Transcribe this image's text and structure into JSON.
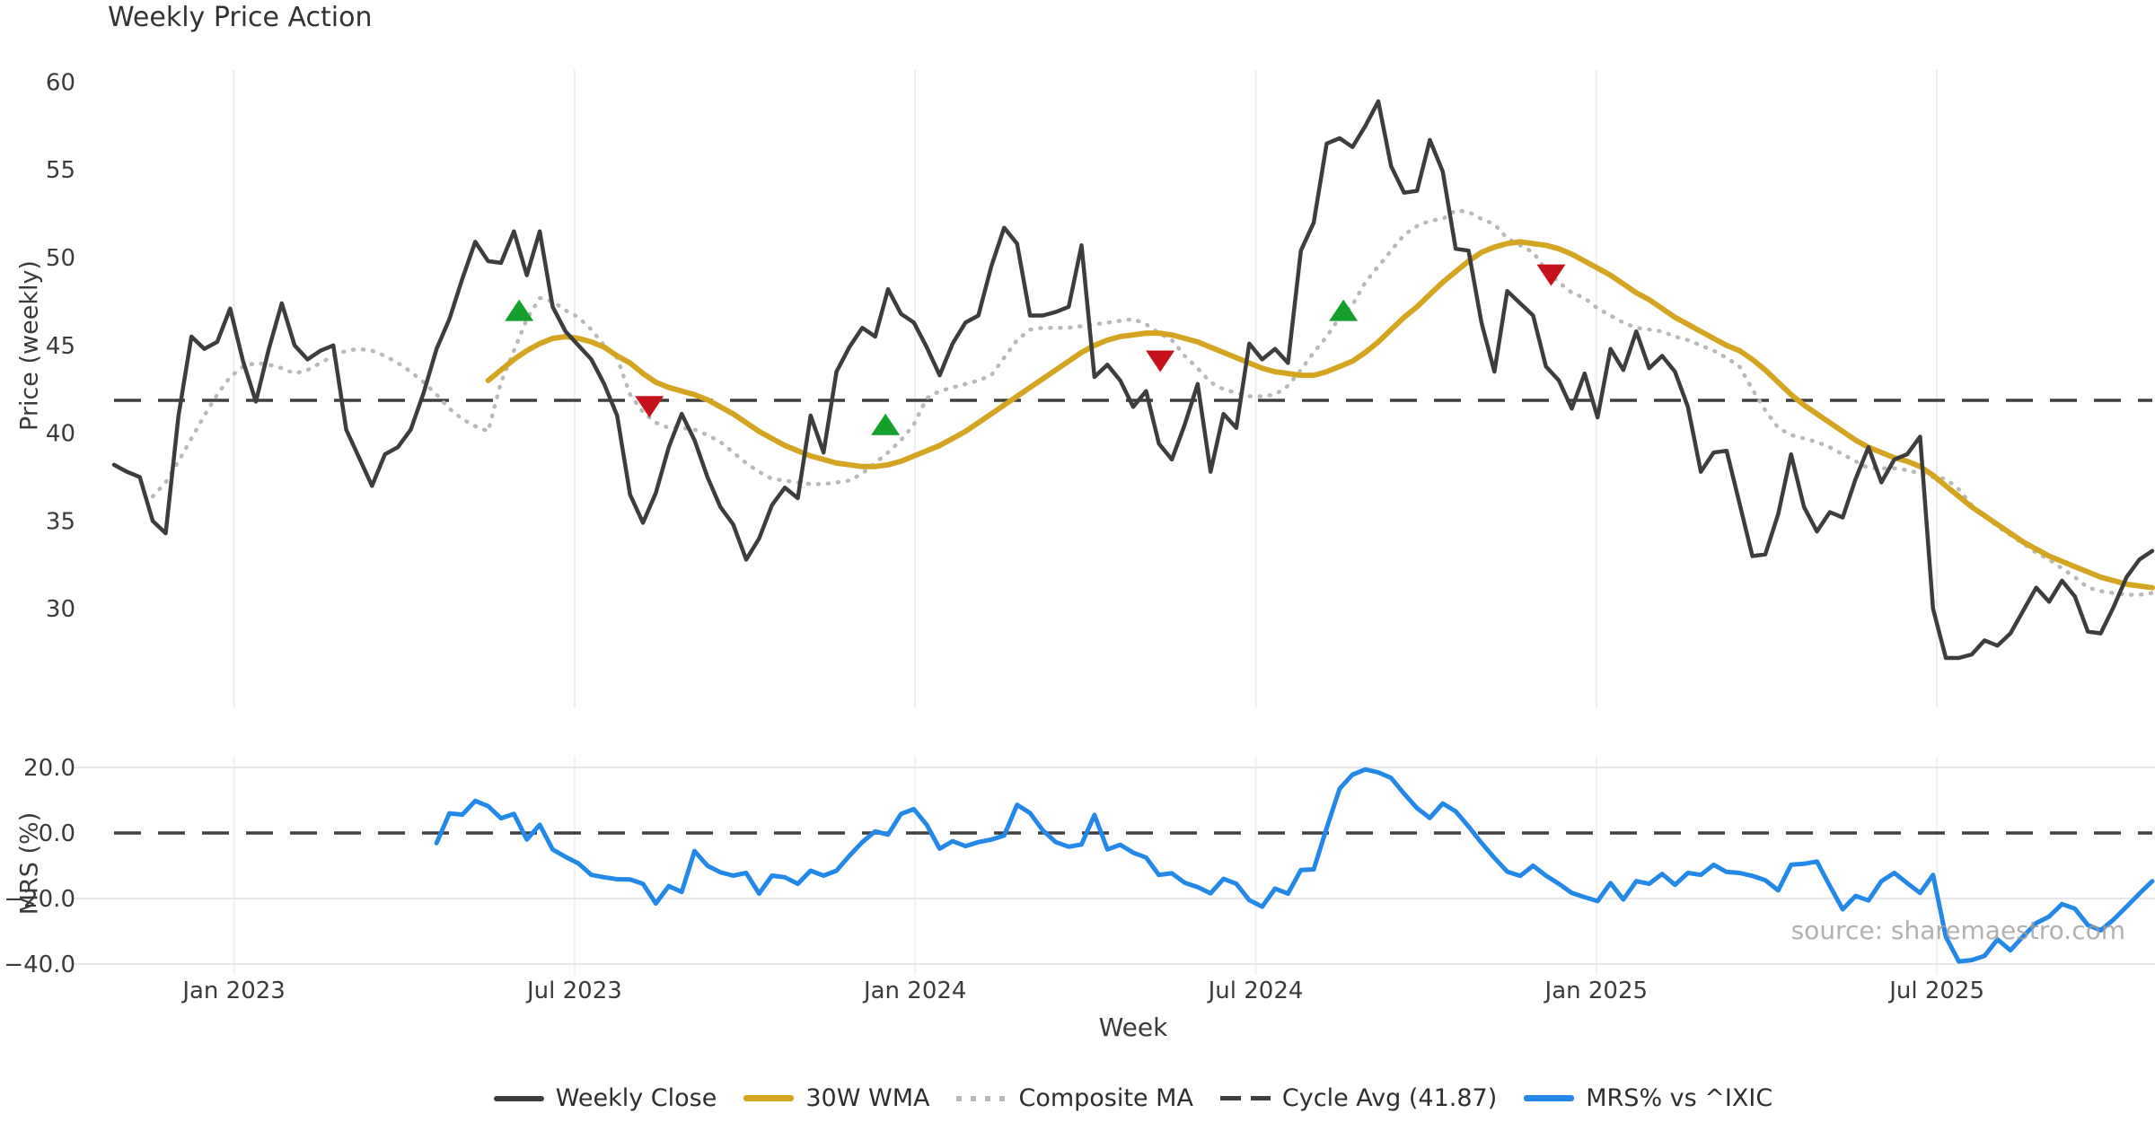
{
  "title": "Weekly Price Action",
  "xlabel": "Week",
  "watermark": "source: sharemaestro.com",
  "colors": {
    "weekly_close": "#3d3d3d",
    "wma_30w": "#d5a521",
    "composite_ma": "#b9b9b9",
    "cycle_avg": "#3f3f3f",
    "mrs": "#2388e8",
    "buy_signal": "#15a02c",
    "sell_signal": "#c5121b",
    "grid": "#ededf1",
    "tick_text": "#3a3a3a"
  },
  "legend": [
    {
      "label": "Weekly Close",
      "swatch": "solid-dark"
    },
    {
      "label": "30W WMA",
      "swatch": "solid-gold"
    },
    {
      "label": "Composite MA",
      "swatch": "dotted-gray"
    },
    {
      "label": "Cycle Avg (41.87)",
      "swatch": "dashed-dark"
    },
    {
      "label": "MRS% vs ^IXIC",
      "swatch": "solid-blue"
    }
  ],
  "chart_data": [
    {
      "type": "line",
      "panel": "price",
      "title": "Weekly Price Action",
      "ylabel": "Price (weekly)",
      "ylim": [
        24.4,
        60.7
      ],
      "yticks": [
        {
          "value": 60,
          "label": "60"
        },
        {
          "value": 55,
          "label": "55"
        },
        {
          "value": 50,
          "label": "50"
        },
        {
          "value": 45,
          "label": "45"
        },
        {
          "value": 40,
          "label": "40"
        },
        {
          "value": 35,
          "label": "35"
        },
        {
          "value": 30,
          "label": "30"
        }
      ],
      "x_ticks": [
        {
          "week": 9.3,
          "label": "Jan 2023"
        },
        {
          "week": 35.7,
          "label": "Jul 2023"
        },
        {
          "week": 62.1,
          "label": "Jan 2024"
        },
        {
          "week": 88.5,
          "label": "Jul 2024"
        },
        {
          "week": 114.9,
          "label": "Jan 2025"
        },
        {
          "week": 141.3,
          "label": "Jul 2025"
        }
      ],
      "cycle_avg": 41.87,
      "series": [
        {
          "name": "Weekly Close",
          "values": [
            38.2,
            37.8,
            37.5,
            35.0,
            34.3,
            41.0,
            45.5,
            44.8,
            45.2,
            47.1,
            44.1,
            41.8,
            44.8,
            47.4,
            45.0,
            44.2,
            44.7,
            45.0,
            40.2,
            38.6,
            37.0,
            38.8,
            39.2,
            40.2,
            42.3,
            44.8,
            46.5,
            48.8,
            50.9,
            49.8,
            49.7,
            51.5,
            49.0,
            51.5,
            47.2,
            45.8,
            45.0,
            44.2,
            42.8,
            41.0,
            36.5,
            34.9,
            36.6,
            39.2,
            41.1,
            39.6,
            37.5,
            35.8,
            34.8,
            32.8,
            34.0,
            35.9,
            36.9,
            36.3,
            41.0,
            38.9,
            43.5,
            44.9,
            46.0,
            45.5,
            48.2,
            46.8,
            46.3,
            44.9,
            43.3,
            45.1,
            46.3,
            46.7,
            49.5,
            51.7,
            50.8,
            46.7,
            46.7,
            46.9,
            47.2,
            50.7,
            43.2,
            43.9,
            43.0,
            41.5,
            42.4,
            39.4,
            38.5,
            40.5,
            42.8,
            37.8,
            41.1,
            40.3,
            45.1,
            44.2,
            44.8,
            44.0,
            50.4,
            52.0,
            56.5,
            56.8,
            56.3,
            57.5,
            58.9,
            55.2,
            53.7,
            53.8,
            56.7,
            54.9,
            50.5,
            50.4,
            46.3,
            43.5,
            48.1,
            47.4,
            46.7,
            43.8,
            43.0,
            41.4,
            43.4,
            40.9,
            44.8,
            43.6,
            45.8,
            43.7,
            44.4,
            43.5,
            41.5,
            37.8,
            38.9,
            39.0,
            36.0,
            33.0,
            33.1,
            35.4,
            38.8,
            35.8,
            34.4,
            35.5,
            35.2,
            37.4,
            39.2,
            37.2,
            38.5,
            38.8,
            39.8,
            30.0,
            27.2,
            27.2,
            27.4,
            28.2,
            27.9,
            28.6,
            29.9,
            31.2,
            30.4,
            31.6,
            30.7,
            28.7,
            28.6,
            30.1,
            31.8,
            32.8,
            33.3
          ]
        },
        {
          "name": "30W WMA",
          "values": [
            null,
            null,
            null,
            null,
            null,
            null,
            null,
            null,
            null,
            null,
            null,
            null,
            null,
            null,
            null,
            null,
            null,
            null,
            null,
            null,
            null,
            null,
            null,
            null,
            null,
            null,
            null,
            null,
            null,
            43.0,
            43.6,
            44.2,
            44.7,
            45.1,
            45.4,
            45.5,
            45.4,
            45.2,
            44.9,
            44.4,
            44.0,
            43.4,
            42.9,
            42.6,
            42.4,
            42.2,
            41.9,
            41.5,
            41.1,
            40.6,
            40.1,
            39.7,
            39.3,
            39.0,
            38.7,
            38.5,
            38.3,
            38.2,
            38.1,
            38.1,
            38.2,
            38.4,
            38.7,
            39.0,
            39.3,
            39.7,
            40.1,
            40.6,
            41.1,
            41.6,
            42.1,
            42.6,
            43.1,
            43.6,
            44.1,
            44.6,
            45.0,
            45.3,
            45.5,
            45.6,
            45.7,
            45.7,
            45.6,
            45.4,
            45.2,
            44.9,
            44.6,
            44.3,
            44.0,
            43.7,
            43.5,
            43.4,
            43.3,
            43.3,
            43.5,
            43.8,
            44.1,
            44.6,
            45.2,
            45.9,
            46.6,
            47.2,
            47.9,
            48.6,
            49.2,
            49.8,
            50.3,
            50.6,
            50.8,
            50.9,
            50.8,
            50.7,
            50.5,
            50.2,
            49.8,
            49.4,
            49.0,
            48.5,
            48.0,
            47.6,
            47.1,
            46.6,
            46.2,
            45.8,
            45.4,
            45.0,
            44.7,
            44.2,
            43.6,
            42.9,
            42.2,
            41.6,
            41.1,
            40.6,
            40.1,
            39.6,
            39.2,
            38.9,
            38.6,
            38.4,
            38.1,
            37.6,
            37.0,
            36.4,
            35.8,
            35.3,
            34.8,
            34.3,
            33.8,
            33.4,
            33.0,
            32.7,
            32.4,
            32.1,
            31.8,
            31.6,
            31.4,
            31.3,
            31.2
          ]
        },
        {
          "name": "Composite MA",
          "values": [
            null,
            null,
            null,
            36.4,
            37.2,
            38.4,
            39.7,
            41.0,
            42.2,
            43.2,
            43.8,
            44.0,
            43.9,
            43.7,
            43.4,
            43.6,
            44.0,
            44.4,
            44.7,
            44.8,
            44.7,
            44.4,
            44.0,
            43.5,
            42.9,
            42.2,
            41.4,
            40.8,
            40.4,
            40.1,
            42.9,
            44.7,
            46.5,
            47.7,
            47.5,
            47.0,
            46.6,
            45.9,
            45.0,
            44.3,
            42.2,
            41.2,
            40.6,
            40.3,
            40.3,
            40.2,
            39.9,
            39.5,
            38.9,
            38.3,
            37.8,
            37.4,
            37.3,
            37.2,
            37.1,
            37.1,
            37.2,
            37.3,
            37.7,
            38.3,
            38.9,
            39.6,
            40.5,
            42.0,
            42.4,
            42.6,
            42.8,
            43.0,
            43.3,
            44.3,
            45.3,
            45.9,
            46.0,
            46.0,
            46.0,
            46.1,
            46.2,
            46.3,
            46.4,
            46.5,
            46.2,
            45.7,
            45.3,
            44.4,
            43.7,
            42.9,
            42.5,
            42.3,
            42.1,
            42.1,
            42.2,
            42.7,
            43.6,
            44.6,
            45.5,
            46.6,
            47.3,
            48.6,
            49.5,
            50.4,
            51.3,
            51.8,
            52.1,
            52.2,
            52.7,
            52.6,
            52.2,
            51.9,
            51.1,
            50.7,
            50.3,
            49.3,
            48.6,
            48.0,
            47.7,
            47.1,
            46.7,
            46.3,
            46.0,
            45.9,
            45.8,
            45.5,
            45.3,
            45.0,
            44.7,
            44.3,
            43.8,
            42.5,
            41.3,
            40.3,
            39.9,
            39.7,
            39.5,
            39.2,
            38.8,
            38.4,
            38.0,
            38.0,
            38.0,
            37.9,
            37.7,
            37.5,
            37.4,
            36.8,
            35.9,
            35.3,
            34.7,
            34.2,
            33.7,
            33.2,
            32.8,
            32.3,
            31.8,
            31.2,
            31.0,
            30.9,
            30.8,
            30.8,
            30.9
          ]
        }
      ],
      "signals": {
        "buy": [
          {
            "week": 31.4,
            "price": 46.9
          },
          {
            "week": 59.8,
            "price": 40.4
          },
          {
            "week": 95.3,
            "price": 46.9
          }
        ],
        "sell": [
          {
            "week": 41.5,
            "price": 41.6
          },
          {
            "week": 81.1,
            "price": 44.2
          },
          {
            "week": 111.4,
            "price": 49.1
          }
        ]
      }
    },
    {
      "type": "line",
      "panel": "mrs",
      "ylabel": "MRS (%)",
      "ylim": [
        -43.3,
        23.3
      ],
      "yticks": [
        {
          "value": 20,
          "label": "20.0"
        },
        {
          "value": 0,
          "label": "0.0"
        },
        {
          "value": -20,
          "label": "−20.0"
        },
        {
          "value": -40,
          "label": "−40.0"
        }
      ],
      "zero_line": 0,
      "series": [
        {
          "name": "MRS% vs ^IXIC",
          "values": [
            null,
            null,
            null,
            null,
            null,
            null,
            null,
            null,
            null,
            null,
            null,
            null,
            null,
            null,
            null,
            null,
            null,
            null,
            null,
            null,
            null,
            null,
            null,
            null,
            null,
            -3.1,
            6.0,
            5.6,
            9.8,
            8.2,
            4.5,
            5.8,
            -2.0,
            2.5,
            -5.0,
            -7.3,
            -9.3,
            -12.8,
            -13.5,
            -14.1,
            -14.2,
            -15.5,
            -21.5,
            -16.2,
            -18.0,
            -5.5,
            -10.0,
            -12.0,
            -13.0,
            -12.2,
            -18.5,
            -13.0,
            -13.5,
            -15.5,
            -11.5,
            -13.0,
            -11.5,
            -7.0,
            -2.8,
            0.5,
            -0.5,
            5.8,
            7.3,
            2.5,
            -4.8,
            -2.5,
            -4.0,
            -2.8,
            -2.0,
            -0.8,
            8.6,
            6.1,
            0.8,
            -2.8,
            -4.2,
            -3.5,
            5.5,
            -5.0,
            -3.6,
            -6.0,
            -7.5,
            -12.8,
            -12.3,
            -15.2,
            -16.5,
            -18.4,
            -14.0,
            -15.5,
            -20.5,
            -22.5,
            -17.0,
            -18.5,
            -11.3,
            -11.1,
            1.5,
            13.5,
            17.8,
            19.4,
            18.5,
            16.8,
            12.0,
            7.6,
            4.6,
            9.0,
            6.6,
            2.0,
            -3.0,
            -7.6,
            -11.8,
            -13.1,
            -10.0,
            -13.0,
            -15.5,
            -18.3,
            -19.6,
            -20.8,
            -15.3,
            -20.3,
            -14.7,
            -15.5,
            -12.5,
            -15.8,
            -12.2,
            -12.8,
            -9.7,
            -11.9,
            -12.2,
            -13.1,
            -14.4,
            -17.5,
            -9.7,
            -9.4,
            -8.7,
            -16.1,
            -23.3,
            -19.2,
            -20.6,
            -14.7,
            -12.2,
            -15.3,
            -18.3,
            -12.8,
            -31.7,
            -39.2,
            -38.8,
            -37.5,
            -32.5,
            -35.8,
            -31.5,
            -27.5,
            -25.5,
            -21.7,
            -23.1,
            -28.1,
            -29.7,
            -26.4,
            -22.5,
            -18.5,
            -14.7
          ]
        }
      ]
    }
  ]
}
